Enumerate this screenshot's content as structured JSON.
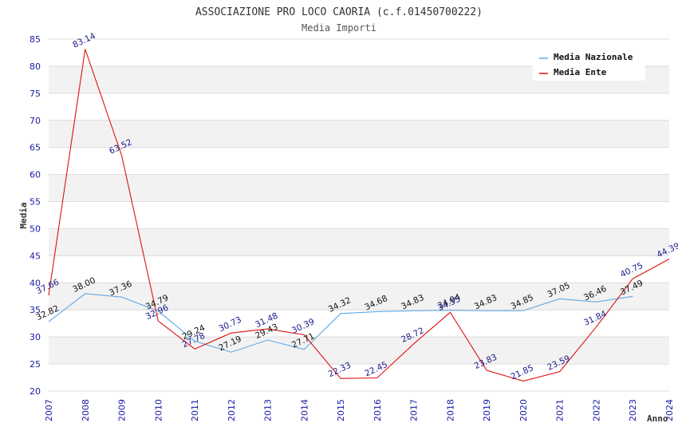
{
  "chart_data": {
    "type": "line",
    "title": "ASSOCIAZIONE PRO LOCO CAORIA (c.f.01450700222)",
    "subtitle": "Media Importi",
    "xlabel": "Anno",
    "ylabel": "Media",
    "ylim": [
      20,
      85
    ],
    "y_ticks": [
      "20",
      "25",
      "30",
      "35",
      "40",
      "45",
      "50",
      "55",
      "60",
      "65",
      "70",
      "75",
      "80",
      "85"
    ],
    "x": [
      "2007",
      "2008",
      "2009",
      "2010",
      "2011",
      "2012",
      "2013",
      "2014",
      "2015",
      "2016",
      "2017",
      "2018",
      "2019",
      "2020",
      "2021",
      "2022",
      "2023",
      "2024"
    ],
    "grid": true,
    "legend_position": "top-right",
    "series": [
      {
        "name": "Media Nazionale",
        "color": "#5ea8e8",
        "label_color": "#111111",
        "values": [
          32.82,
          38.0,
          37.36,
          34.79,
          29.24,
          27.19,
          29.43,
          27.71,
          34.32,
          34.68,
          34.83,
          34.94,
          34.83,
          34.85,
          37.05,
          36.46,
          37.49,
          null
        ],
        "labels": [
          "32.82",
          "38.00",
          "37.36",
          "34.79",
          "29.24",
          "27.19",
          "29.43",
          "27.71",
          "34.32",
          "34.68",
          "34.83",
          "34.94",
          "34.83",
          "34.85",
          "37.05",
          "36.46",
          "37.49",
          ""
        ]
      },
      {
        "name": "Media Ente",
        "color": "#e01010",
        "label_color": "#1a1a8c",
        "values": [
          37.66,
          83.14,
          63.52,
          32.96,
          27.78,
          30.73,
          31.48,
          30.39,
          22.33,
          22.45,
          28.72,
          34.55,
          23.83,
          21.85,
          23.59,
          31.84,
          40.75,
          44.39
        ],
        "labels": [
          "37.66",
          "83.14",
          "63.52",
          "32.96",
          "27.78",
          "30.73",
          "31.48",
          "30.39",
          "22.33",
          "22.45",
          "28.72",
          "34.55",
          "23.83",
          "21.85",
          "23.59",
          "31.84",
          "40.75",
          "44.39"
        ]
      }
    ]
  }
}
